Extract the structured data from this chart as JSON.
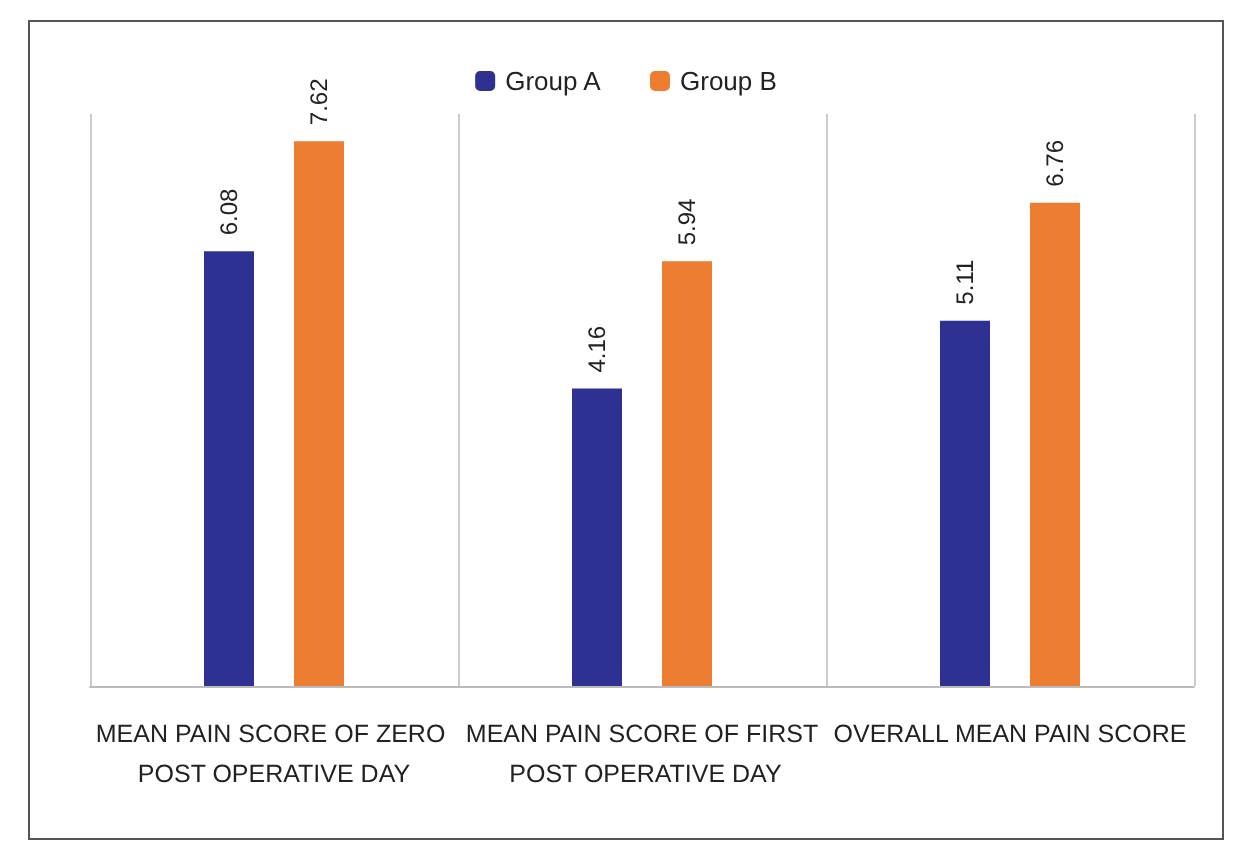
{
  "chart_data": {
    "type": "bar",
    "categories": [
      "MEAN PAIN SCORE OF ZERO POST OPERATIVE DAY",
      "MEAN PAIN SCORE OF FIRST POST OPERATIVE DAY",
      "OVERALL MEAN PAIN SCORE"
    ],
    "series": [
      {
        "name": "Group A",
        "color": "#2e3192",
        "values": [
          6.08,
          4.16,
          5.11
        ]
      },
      {
        "name": "Group B",
        "color": "#ed7d31",
        "values": [
          7.62,
          5.94,
          6.76
        ]
      }
    ],
    "data_labels": true,
    "grid": "x",
    "legend": "top",
    "tick_labels": "x"
  }
}
